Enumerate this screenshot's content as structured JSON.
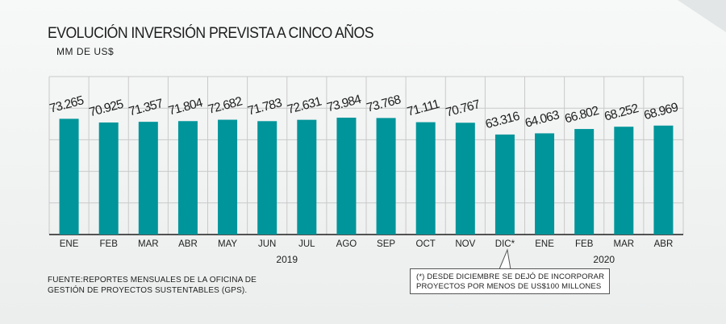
{
  "header": {
    "title": "EVOLUCIÓN INVERSIÓN PREVISTA A CINCO AÑOS",
    "subtitle": "MM DE US$"
  },
  "colors": {
    "bar": "#00959a",
    "grid": "#c9c9c9",
    "axis": "#1e1e1e"
  },
  "chart_data": {
    "type": "bar",
    "categories": [
      "ENE",
      "FEB",
      "MAR",
      "ABR",
      "MAY",
      "JUN",
      "JUL",
      "AGO",
      "SEP",
      "OCT",
      "NOV",
      "DIC*",
      "ENE",
      "FEB",
      "MAR",
      "ABR"
    ],
    "values": [
      73.265,
      70.925,
      71.357,
      71.804,
      72.682,
      71.783,
      72.631,
      73.984,
      73.768,
      71.111,
      70.767,
      63.316,
      64.063,
      66.802,
      68.252,
      68.969
    ],
    "data_labels": [
      "73.265",
      "70.925",
      "71.357",
      "71.804",
      "72.682",
      "71.783",
      "72.631",
      "73.984",
      "73.768",
      "71.111",
      "70.767",
      "63.316",
      "64.063",
      "66.802",
      "68.252",
      "68.969"
    ],
    "year_groups": [
      {
        "label": "2019",
        "from": 0,
        "to": 11
      },
      {
        "label": "2020",
        "from": 12,
        "to": 15
      }
    ],
    "ylim": [
      0,
      100
    ],
    "grid": true,
    "legend": "none"
  },
  "footer": {
    "source_lines": [
      "FUENTE:REPORTES MENSUALES DE LA OFICINA DE",
      "GESTIÓN DE PROYECTOS SUSTENTABLES (GPS)."
    ],
    "note_lines": [
      "(*) DESDE DICIEMBRE SE DEJÓ DE INCORPORAR",
      "PROYECTOS POR MENOS DE US$100 MILLONES"
    ]
  }
}
